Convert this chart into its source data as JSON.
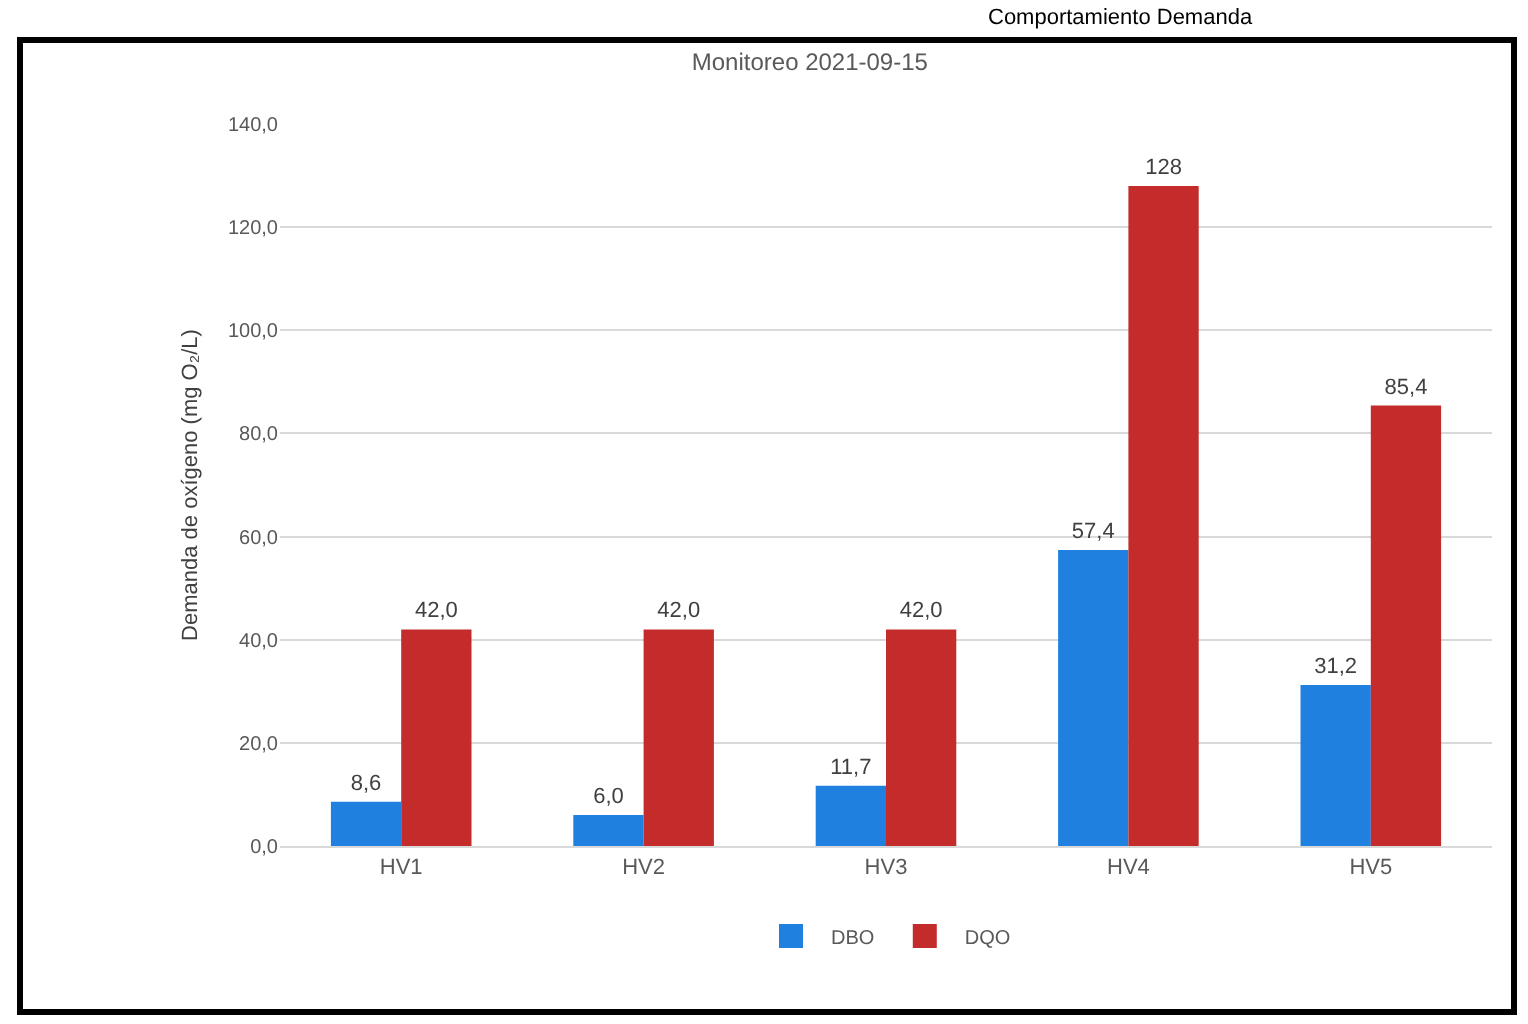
{
  "chart_data": {
    "type": "bar",
    "title": "Monitoreo 2021-09-15",
    "ylabel": "Demanda de oxígeno (mg O₂/L)",
    "categories": [
      "HV1",
      "HV2",
      "HV3",
      "HV4",
      "HV5"
    ],
    "series": [
      {
        "name": "DBO",
        "color": "#1f80e0",
        "values": [
          8.6,
          6.0,
          11.7,
          57.4,
          31.2
        ],
        "value_labels": [
          "8,6",
          "6,0",
          "11,7",
          "57,4",
          "31,2"
        ]
      },
      {
        "name": "DQO",
        "color": "#c42b2b",
        "values": [
          42.0,
          42.0,
          42.0,
          128,
          85.4
        ],
        "value_labels": [
          "42,0",
          "42,0",
          "42,0",
          "128",
          "85,4"
        ]
      }
    ],
    "ylim": [
      0,
      140
    ],
    "yticks": [
      {
        "value": 0,
        "label": "0,0"
      },
      {
        "value": 20,
        "label": "20,0"
      },
      {
        "value": 40,
        "label": "40,0"
      },
      {
        "value": 60,
        "label": "60,0"
      },
      {
        "value": 80,
        "label": "80,0"
      },
      {
        "value": 100,
        "label": "100,0"
      },
      {
        "value": 120,
        "label": "120,0"
      },
      {
        "value": 140,
        "label": "140,0"
      }
    ],
    "grid": "y",
    "legend": "bottom",
    "annotations": [
      "Comportamiento Demanda"
    ]
  }
}
